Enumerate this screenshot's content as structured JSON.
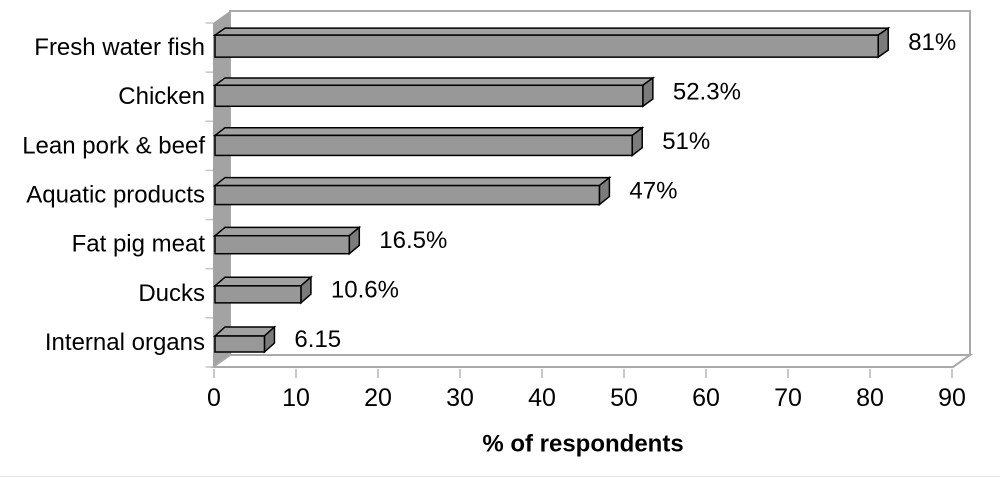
{
  "chart_data": {
    "type": "bar",
    "orientation": "horizontal",
    "style": "3d-excel",
    "title": "",
    "xlabel": "% of respondents",
    "ylabel": "",
    "categories": [
      "Fresh water fish",
      "Chicken",
      "Lean pork & beef",
      "Aquatic products",
      "Fat pig meat",
      "Ducks",
      "Internal organs"
    ],
    "values": [
      81,
      52.3,
      51,
      47,
      16.5,
      10.6,
      6.15
    ],
    "data_labels": [
      "81%",
      "52.3%",
      "51%",
      "47%",
      "16.5%",
      "10.6%",
      "6.15"
    ],
    "xlim": [
      0,
      90
    ],
    "xticks": [
      0,
      10,
      20,
      30,
      40,
      50,
      60,
      70,
      80,
      90
    ],
    "grid": false,
    "legend": false,
    "colors": {
      "background": "#ffffff",
      "bar_front": "#989898",
      "bar_top": "#a1a1a1",
      "bar_side": "#7b7b7b",
      "bar_outline": "#000000",
      "wall_fill": "#a3a3a3",
      "floor_fill": "#ffffff",
      "plot_border": "#a9a9a9",
      "category_tick": "#c6c6c6",
      "value_tick": "#b5b5b5",
      "text_color": "#000000",
      "divider": "#e5e5e5"
    }
  }
}
